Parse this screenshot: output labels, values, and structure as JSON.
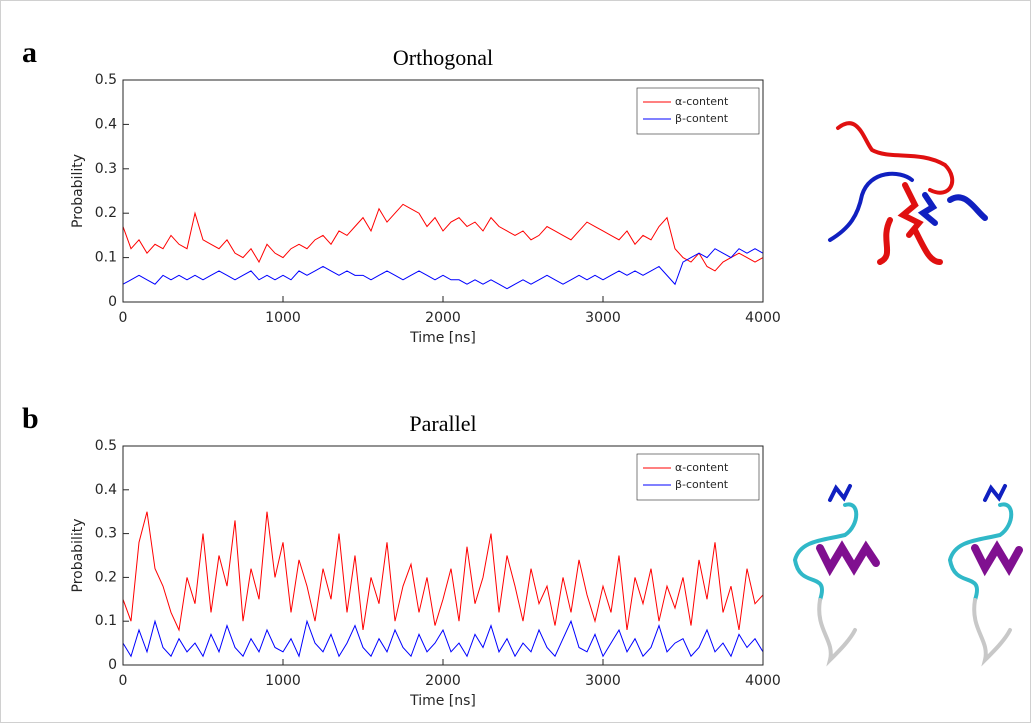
{
  "chart_data": [
    {
      "type": "line",
      "panel_label": "a",
      "title": "Orthogonal",
      "x_label": "Time [ns]",
      "y_label": "Probability",
      "xlim": [
        0,
        4000
      ],
      "xticks": [
        0,
        1000,
        2000,
        3000,
        4000
      ],
      "ylim": [
        0,
        0.5
      ],
      "yticks": [
        0,
        0.1,
        0.2,
        0.3,
        0.4,
        0.5
      ],
      "grid": false,
      "legend": "upper right",
      "x": [
        0,
        50,
        100,
        150,
        200,
        250,
        300,
        350,
        400,
        450,
        500,
        550,
        600,
        650,
        700,
        750,
        800,
        850,
        900,
        950,
        1000,
        1050,
        1100,
        1150,
        1200,
        1250,
        1300,
        1350,
        1400,
        1450,
        1500,
        1550,
        1600,
        1650,
        1700,
        1750,
        1800,
        1850,
        1900,
        1950,
        2000,
        2050,
        2100,
        2150,
        2200,
        2250,
        2300,
        2350,
        2400,
        2450,
        2500,
        2550,
        2600,
        2650,
        2700,
        2750,
        2800,
        2850,
        2900,
        2950,
        3000,
        3050,
        3100,
        3150,
        3200,
        3250,
        3300,
        3350,
        3400,
        3450,
        3500,
        3550,
        3600,
        3650,
        3700,
        3750,
        3800,
        3850,
        3900,
        3950,
        4000
      ],
      "series": [
        {
          "name": "α-content",
          "color": "#ff0000",
          "values": [
            0.17,
            0.12,
            0.14,
            0.11,
            0.13,
            0.12,
            0.15,
            0.13,
            0.12,
            0.2,
            0.14,
            0.13,
            0.12,
            0.14,
            0.11,
            0.1,
            0.12,
            0.09,
            0.13,
            0.11,
            0.1,
            0.12,
            0.13,
            0.12,
            0.14,
            0.15,
            0.13,
            0.16,
            0.15,
            0.17,
            0.19,
            0.16,
            0.21,
            0.18,
            0.2,
            0.22,
            0.21,
            0.2,
            0.17,
            0.19,
            0.16,
            0.18,
            0.19,
            0.17,
            0.18,
            0.16,
            0.19,
            0.17,
            0.16,
            0.15,
            0.16,
            0.14,
            0.15,
            0.17,
            0.16,
            0.15,
            0.14,
            0.16,
            0.18,
            0.17,
            0.16,
            0.15,
            0.14,
            0.16,
            0.13,
            0.15,
            0.14,
            0.17,
            0.19,
            0.12,
            0.1,
            0.09,
            0.11,
            0.08,
            0.07,
            0.09,
            0.1,
            0.11,
            0.1,
            0.09,
            0.1
          ]
        },
        {
          "name": "β-content",
          "color": "#0000ff",
          "values": [
            0.04,
            0.05,
            0.06,
            0.05,
            0.04,
            0.06,
            0.05,
            0.06,
            0.05,
            0.06,
            0.05,
            0.06,
            0.07,
            0.06,
            0.05,
            0.06,
            0.07,
            0.05,
            0.06,
            0.05,
            0.06,
            0.05,
            0.07,
            0.06,
            0.07,
            0.08,
            0.07,
            0.06,
            0.07,
            0.06,
            0.06,
            0.05,
            0.06,
            0.07,
            0.06,
            0.05,
            0.06,
            0.07,
            0.06,
            0.05,
            0.06,
            0.05,
            0.05,
            0.04,
            0.05,
            0.04,
            0.05,
            0.04,
            0.03,
            0.04,
            0.05,
            0.04,
            0.05,
            0.06,
            0.05,
            0.04,
            0.05,
            0.06,
            0.05,
            0.06,
            0.05,
            0.06,
            0.07,
            0.06,
            0.07,
            0.06,
            0.07,
            0.08,
            0.06,
            0.04,
            0.09,
            0.1,
            0.11,
            0.1,
            0.12,
            0.11,
            0.1,
            0.12,
            0.11,
            0.12,
            0.11
          ]
        }
      ]
    },
    {
      "type": "line",
      "panel_label": "b",
      "title": "Parallel",
      "x_label": "Time [ns]",
      "y_label": "Probability",
      "xlim": [
        0,
        4000
      ],
      "xticks": [
        0,
        1000,
        2000,
        3000,
        4000
      ],
      "ylim": [
        0,
        0.5
      ],
      "yticks": [
        0,
        0.1,
        0.2,
        0.3,
        0.4,
        0.5
      ],
      "grid": false,
      "legend": "upper right",
      "x": [
        0,
        50,
        100,
        150,
        200,
        250,
        300,
        350,
        400,
        450,
        500,
        550,
        600,
        650,
        700,
        750,
        800,
        850,
        900,
        950,
        1000,
        1050,
        1100,
        1150,
        1200,
        1250,
        1300,
        1350,
        1400,
        1450,
        1500,
        1550,
        1600,
        1650,
        1700,
        1750,
        1800,
        1850,
        1900,
        1950,
        2000,
        2050,
        2100,
        2150,
        2200,
        2250,
        2300,
        2350,
        2400,
        2450,
        2500,
        2550,
        2600,
        2650,
        2700,
        2750,
        2800,
        2850,
        2900,
        2950,
        3000,
        3050,
        3100,
        3150,
        3200,
        3250,
        3300,
        3350,
        3400,
        3450,
        3500,
        3550,
        3600,
        3650,
        3700,
        3750,
        3800,
        3850,
        3900,
        3950,
        4000
      ],
      "series": [
        {
          "name": "α-content",
          "color": "#ff0000",
          "values": [
            0.15,
            0.1,
            0.28,
            0.35,
            0.22,
            0.18,
            0.12,
            0.08,
            0.2,
            0.14,
            0.3,
            0.12,
            0.25,
            0.18,
            0.33,
            0.1,
            0.22,
            0.15,
            0.35,
            0.2,
            0.28,
            0.12,
            0.24,
            0.18,
            0.1,
            0.22,
            0.15,
            0.3,
            0.12,
            0.25,
            0.08,
            0.2,
            0.14,
            0.28,
            0.1,
            0.18,
            0.23,
            0.12,
            0.2,
            0.09,
            0.15,
            0.22,
            0.1,
            0.27,
            0.14,
            0.2,
            0.3,
            0.12,
            0.25,
            0.18,
            0.1,
            0.22,
            0.14,
            0.18,
            0.09,
            0.2,
            0.12,
            0.24,
            0.16,
            0.1,
            0.18,
            0.12,
            0.25,
            0.08,
            0.2,
            0.14,
            0.22,
            0.1,
            0.18,
            0.13,
            0.2,
            0.09,
            0.24,
            0.15,
            0.28,
            0.12,
            0.18,
            0.08,
            0.22,
            0.14,
            0.16
          ]
        },
        {
          "name": "β-content",
          "color": "#0000ff",
          "values": [
            0.05,
            0.02,
            0.08,
            0.03,
            0.1,
            0.04,
            0.02,
            0.06,
            0.03,
            0.05,
            0.02,
            0.07,
            0.03,
            0.09,
            0.04,
            0.02,
            0.06,
            0.03,
            0.08,
            0.04,
            0.03,
            0.06,
            0.02,
            0.1,
            0.05,
            0.03,
            0.07,
            0.02,
            0.05,
            0.09,
            0.04,
            0.02,
            0.06,
            0.03,
            0.08,
            0.04,
            0.02,
            0.07,
            0.03,
            0.05,
            0.08,
            0.03,
            0.05,
            0.02,
            0.07,
            0.04,
            0.09,
            0.03,
            0.06,
            0.02,
            0.05,
            0.03,
            0.08,
            0.04,
            0.02,
            0.06,
            0.1,
            0.04,
            0.03,
            0.07,
            0.02,
            0.05,
            0.08,
            0.03,
            0.06,
            0.02,
            0.04,
            0.09,
            0.03,
            0.05,
            0.06,
            0.02,
            0.04,
            0.08,
            0.03,
            0.05,
            0.02,
            0.07,
            0.04,
            0.06,
            0.03
          ]
        }
      ]
    }
  ]
}
